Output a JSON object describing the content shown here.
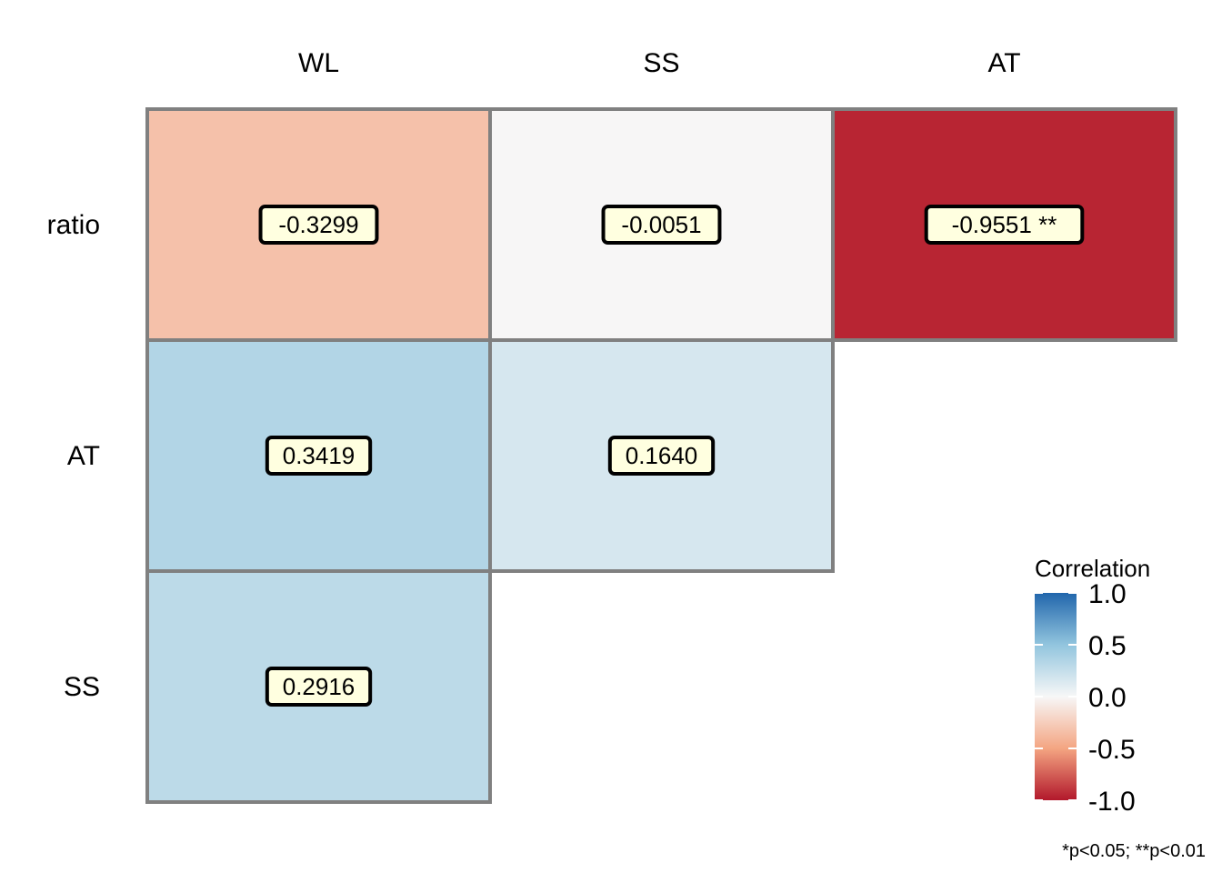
{
  "chart_data": {
    "type": "heatmap",
    "title": "",
    "columns": [
      "WL",
      "SS",
      "AT"
    ],
    "rows": [
      "ratio",
      "AT",
      "SS"
    ],
    "cells": [
      {
        "row": "ratio",
        "col": "WL",
        "value": -0.3299,
        "label": "-0.3299"
      },
      {
        "row": "ratio",
        "col": "SS",
        "value": -0.0051,
        "label": "-0.0051"
      },
      {
        "row": "ratio",
        "col": "AT",
        "value": -0.9551,
        "label": "-0.9551 **"
      },
      {
        "row": "AT",
        "col": "WL",
        "value": 0.3419,
        "label": "0.3419"
      },
      {
        "row": "AT",
        "col": "SS",
        "value": 0.164,
        "label": "0.1640"
      },
      {
        "row": "SS",
        "col": "WL",
        "value": 0.2916,
        "label": "0.2916"
      }
    ],
    "color_scale": {
      "min": -1.0,
      "max": 1.0,
      "low_color": "#B2182B",
      "mid_color": "#F7F7F7",
      "high_color": "#2166AC"
    },
    "legend": {
      "title": "Correlation",
      "ticks": [
        "1.0",
        "0.5",
        "0.0",
        "-0.5",
        "-1.0"
      ],
      "tick_values": [
        1.0,
        0.5,
        0.0,
        -0.5,
        -1.0
      ],
      "placement": "bottom-right"
    },
    "footnote": "*p<0.05; **p<0.01",
    "cell_border_color": "#808080",
    "label_fill_color": "#FFFFE0"
  }
}
